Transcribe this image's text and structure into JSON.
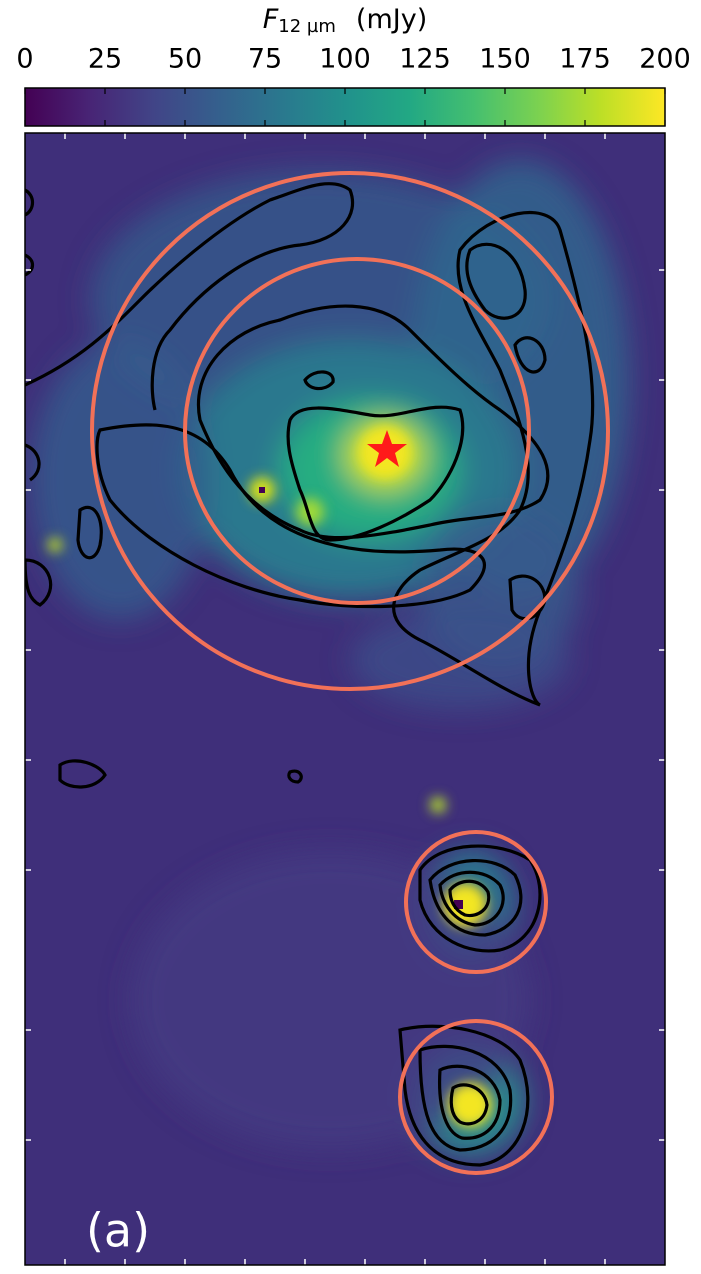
{
  "chart_data": {
    "type": "image",
    "colorbar": {
      "label_symbol": "F",
      "label_subscript": "12 µm",
      "label_unit": "(mJy)",
      "xlim": [
        0,
        200
      ],
      "xticks": [
        0,
        25,
        50,
        75,
        100,
        125,
        150,
        175,
        200
      ],
      "colormap": "viridis"
    },
    "panel_label": "(a)",
    "circle_color": "#f27158",
    "contour_color": "#000000",
    "marker_color": "#ff1a1a"
  }
}
